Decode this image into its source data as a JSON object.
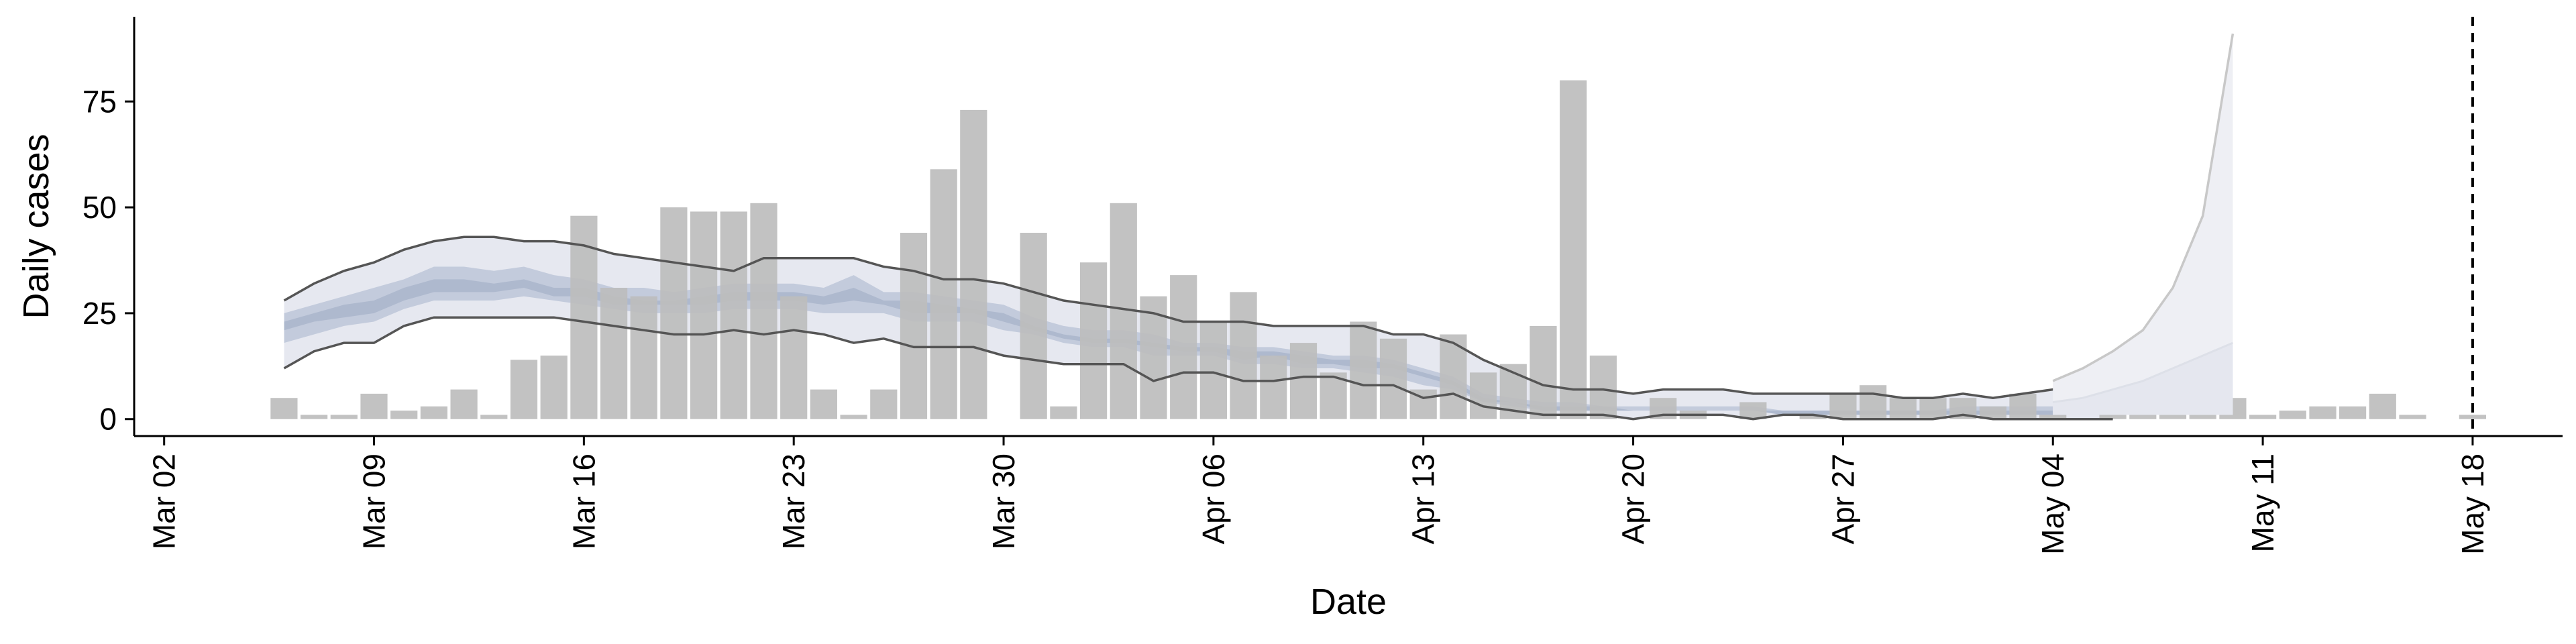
{
  "chart_data": {
    "type": "bar",
    "xlabel": "Date",
    "ylabel": "Daily cases",
    "ylim": [
      -4,
      95
    ],
    "xlim": [
      "2020-03-01",
      "2020-05-21"
    ],
    "y_ticks": [
      0,
      25,
      50,
      75
    ],
    "x_ticks": [
      {
        "date": "2020-03-02",
        "label": "Mar 02"
      },
      {
        "date": "2020-03-09",
        "label": "Mar 09"
      },
      {
        "date": "2020-03-16",
        "label": "Mar 16"
      },
      {
        "date": "2020-03-23",
        "label": "Mar 23"
      },
      {
        "date": "2020-03-30",
        "label": "Mar 30"
      },
      {
        "date": "2020-04-06",
        "label": "Apr 06"
      },
      {
        "date": "2020-04-13",
        "label": "Apr 13"
      },
      {
        "date": "2020-04-20",
        "label": "Apr 20"
      },
      {
        "date": "2020-04-27",
        "label": "Apr 27"
      },
      {
        "date": "2020-05-04",
        "label": "May 04"
      },
      {
        "date": "2020-05-11",
        "label": "May 11"
      },
      {
        "date": "2020-05-18",
        "label": "May 18"
      }
    ],
    "grid": false,
    "colors": {
      "bars": "#bdbdbd",
      "band_outer": "#e6e8f0",
      "band_inner": "#c3cbdc",
      "band_core": "#a9b4cb",
      "band_lines": "#555555",
      "forecast_band": "#eeeff4",
      "forecast_line": "#c8c8c8"
    },
    "bars": {
      "start_date": "2020-03-06",
      "values": [
        5,
        1,
        1,
        6,
        2,
        3,
        7,
        1,
        14,
        15,
        48,
        31,
        29,
        50,
        49,
        49,
        51,
        29,
        7,
        1,
        7,
        44,
        59,
        73,
        0,
        44,
        3,
        37,
        51,
        29,
        34,
        23,
        30,
        15,
        18,
        11,
        23,
        19,
        7,
        20,
        11,
        13,
        22,
        80,
        15,
        0,
        5,
        2,
        0,
        4,
        0,
        1,
        6,
        8,
        5,
        5,
        5,
        3,
        6,
        1,
        0,
        3,
        4,
        1,
        1,
        5,
        1,
        2,
        3,
        3,
        6,
        1,
        0,
        1
      ]
    },
    "estimate": {
      "start_date": "2020-03-06",
      "upper": [
        28,
        32,
        35,
        37,
        40,
        42,
        43,
        43,
        42,
        42,
        41,
        39,
        38,
        37,
        36,
        35,
        38,
        38,
        38,
        38,
        36,
        35,
        33,
        33,
        32,
        30,
        28,
        27,
        26,
        25,
        23,
        23,
        23,
        22,
        22,
        22,
        22,
        20,
        20,
        18,
        14,
        11,
        8,
        7,
        7,
        6,
        7,
        7,
        7,
        6,
        6,
        6,
        6,
        6,
        5,
        5,
        6,
        5,
        6,
        7,
        8,
        9
      ],
      "lower": [
        12,
        16,
        18,
        18,
        22,
        24,
        24,
        24,
        24,
        24,
        23,
        22,
        21,
        20,
        20,
        21,
        20,
        21,
        20,
        18,
        19,
        17,
        17,
        17,
        15,
        14,
        13,
        13,
        13,
        9,
        11,
        11,
        9,
        9,
        10,
        10,
        8,
        8,
        5,
        6,
        3,
        2,
        1,
        1,
        1,
        0,
        1,
        1,
        1,
        0,
        1,
        1,
        0,
        0,
        0,
        0,
        1,
        0,
        0,
        0,
        0,
        0
      ],
      "inner_upper": [
        25,
        27,
        29,
        31,
        33,
        36,
        36,
        35,
        36,
        34,
        33,
        31,
        31,
        30,
        31,
        32,
        32,
        32,
        31,
        34,
        30,
        30,
        29,
        28,
        27,
        24,
        22,
        21,
        21,
        20,
        18,
        18,
        17,
        17,
        16,
        15,
        15,
        14,
        12,
        10,
        6,
        5,
        4,
        4,
        3,
        3,
        3,
        3,
        3,
        3,
        2,
        2,
        2,
        2,
        2,
        2,
        3,
        3,
        3,
        3,
        3,
        3
      ],
      "inner_lower": [
        18,
        20,
        22,
        23,
        26,
        28,
        28,
        28,
        29,
        28,
        27,
        26,
        25,
        25,
        25,
        26,
        26,
        26,
        25,
        25,
        25,
        23,
        23,
        23,
        21,
        20,
        18,
        17,
        17,
        15,
        15,
        15,
        13,
        13,
        12,
        12,
        11,
        10,
        8,
        7,
        4,
        3,
        2,
        2,
        2,
        2,
        2,
        2,
        2,
        2,
        1,
        1,
        1,
        1,
        1,
        1,
        1,
        1,
        1,
        1,
        1,
        1
      ],
      "core_upper": [
        23,
        25,
        27,
        28,
        31,
        33,
        33,
        32,
        33,
        31,
        31,
        29,
        28,
        28,
        29,
        30,
        30,
        30,
        29,
        31,
        28,
        28,
        27,
        26,
        25,
        22,
        20,
        19,
        19,
        18,
        17,
        17,
        16,
        16,
        15,
        14,
        14,
        13,
        11,
        9,
        5,
        4,
        3,
        3,
        3,
        2,
        2,
        2,
        2,
        2,
        2,
        2,
        2,
        2,
        2,
        2,
        2,
        2,
        2,
        2,
        2,
        2
      ],
      "core_lower": [
        21,
        23,
        24,
        25,
        28,
        30,
        30,
        30,
        31,
        29,
        29,
        27,
        27,
        27,
        27,
        28,
        28,
        28,
        27,
        28,
        27,
        25,
        25,
        25,
        23,
        21,
        19,
        18,
        18,
        17,
        16,
        16,
        14,
        15,
        13,
        13,
        12,
        12,
        10,
        8,
        4,
        4,
        2,
        2,
        2,
        2,
        2,
        2,
        2,
        2,
        1,
        1,
        1,
        1,
        1,
        1,
        1,
        1,
        1,
        1,
        1,
        1
      ]
    },
    "forecast": {
      "start_date": "2020-05-04",
      "upper": [
        9,
        12,
        16,
        21,
        31,
        48,
        91
      ],
      "lower": [
        1,
        1,
        1,
        1,
        1,
        1,
        1
      ],
      "inner_upper": [
        4,
        5,
        7,
        9,
        12,
        15,
        18
      ]
    },
    "vline_date": "2020-05-18"
  }
}
